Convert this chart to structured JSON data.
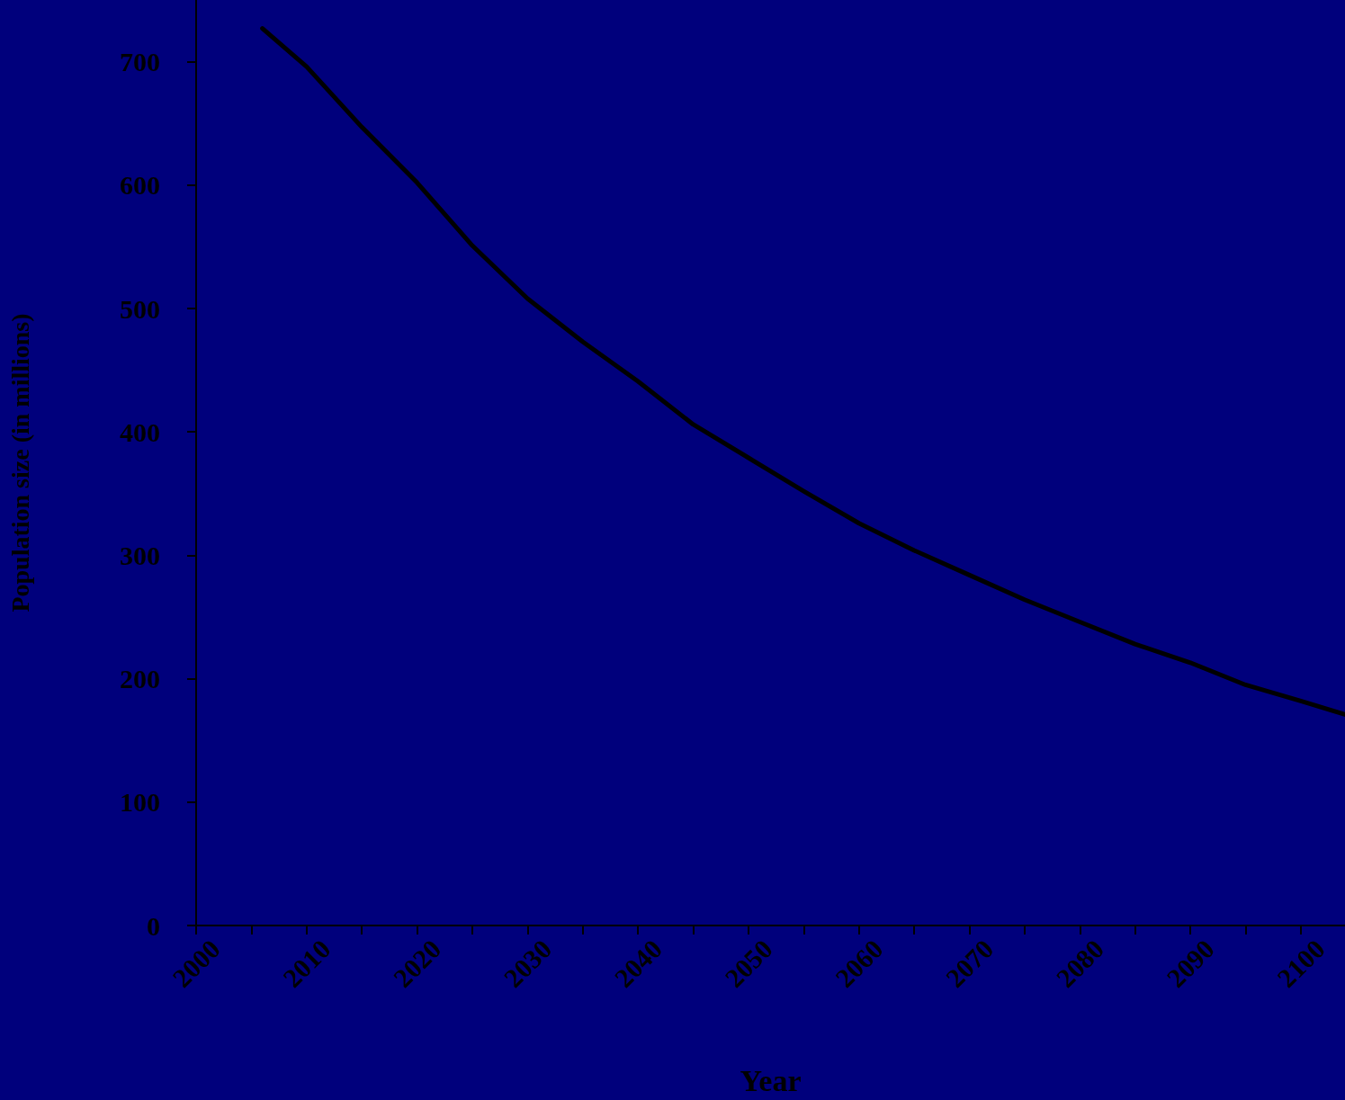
{
  "chart_data": {
    "type": "line",
    "xlabel": "Year",
    "ylabel": "Population size (in millions)",
    "x": [
      2006,
      2010,
      2015,
      2020,
      2025,
      2030,
      2035,
      2040,
      2045,
      2050,
      2055,
      2060,
      2065,
      2070,
      2075,
      2080,
      2085,
      2090,
      2095,
      2100,
      2104
    ],
    "series": [
      {
        "color": "#000000",
        "values": [
          727,
          696,
          647,
          602,
          551,
          508,
          473,
          441,
          406,
          379,
          352,
          326,
          304,
          284,
          264,
          246,
          228,
          213,
          195,
          182,
          171
        ]
      }
    ],
    "xlim": [
      2000,
      2104
    ],
    "xticks": [
      2000,
      {
        "value": 2005,
        "label": null
      },
      2010,
      {
        "value": 2015,
        "label": null
      },
      2020,
      {
        "value": 2025,
        "label": null
      },
      2030,
      {
        "value": 2035,
        "label": null
      },
      2040,
      {
        "value": 2045,
        "label": null
      },
      2050,
      {
        "value": 2055,
        "label": null
      },
      2060,
      {
        "value": 2065,
        "label": null
      },
      2070,
      {
        "value": 2075,
        "label": null
      },
      2080,
      {
        "value": 2085,
        "label": null
      },
      2090,
      {
        "value": 2095,
        "label": null
      },
      2100
    ],
    "ylim": [
      0,
      750
    ],
    "yticks": [
      0,
      100,
      200,
      300,
      400,
      500,
      600,
      700
    ],
    "grid": false,
    "marker": "none",
    "line_style": "solid"
  }
}
